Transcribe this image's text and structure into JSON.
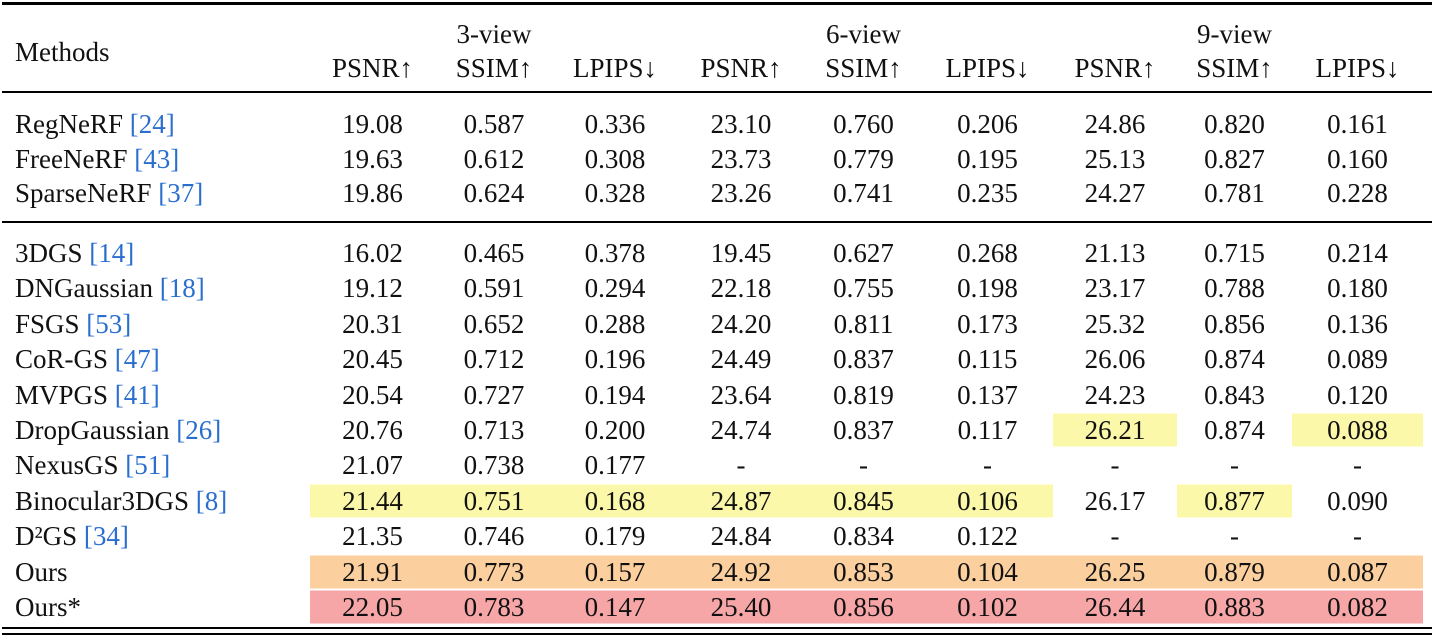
{
  "table": {
    "header": {
      "method": "Methods",
      "groups": [
        "3-view",
        "6-view",
        "9-view"
      ],
      "metrics": [
        "PSNR↑",
        "SSIM↑",
        "LPIPS↓",
        "PSNR↑",
        "SSIM↑",
        "LPIPS↓",
        "PSNR↑",
        "SSIM↑",
        "LPIPS↓"
      ]
    },
    "highlight_colors": {
      "yellow": "#fbf8a9",
      "orange": "#fbcf9e",
      "red": "#f7a6a8"
    },
    "sections": [
      {
        "rows": [
          {
            "method": "RegNeRF",
            "cite": "[24]",
            "cells": [
              "19.08",
              "0.587",
              "0.336",
              "23.10",
              "0.760",
              "0.206",
              "24.86",
              "0.820",
              "0.161"
            ]
          },
          {
            "method": "FreeNeRF",
            "cite": "[43]",
            "cells": [
              "19.63",
              "0.612",
              "0.308",
              "23.73",
              "0.779",
              "0.195",
              "25.13",
              "0.827",
              "0.160"
            ]
          },
          {
            "method": "SparseNeRF",
            "cite": "[37]",
            "cells": [
              "19.86",
              "0.624",
              "0.328",
              "23.26",
              "0.741",
              "0.235",
              "24.27",
              "0.781",
              "0.228"
            ]
          }
        ]
      },
      {
        "rows": [
          {
            "method": "3DGS",
            "cite": "[14]",
            "cells": [
              "16.02",
              "0.465",
              "0.378",
              "19.45",
              "0.627",
              "0.268",
              "21.13",
              "0.715",
              "0.214"
            ]
          },
          {
            "method": "DNGaussian",
            "cite": "[18]",
            "cells": [
              "19.12",
              "0.591",
              "0.294",
              "22.18",
              "0.755",
              "0.198",
              "23.17",
              "0.788",
              "0.180"
            ]
          },
          {
            "method": "FSGS",
            "cite": "[53]",
            "cells": [
              "20.31",
              "0.652",
              "0.288",
              "24.20",
              "0.811",
              "0.173",
              "25.32",
              "0.856",
              "0.136"
            ]
          },
          {
            "method": "CoR-GS",
            "cite": "[47]",
            "cells": [
              "20.45",
              "0.712",
              "0.196",
              "24.49",
              "0.837",
              "0.115",
              "26.06",
              "0.874",
              "0.089"
            ]
          },
          {
            "method": "MVPGS",
            "cite": "[41]",
            "cells": [
              "20.54",
              "0.727",
              "0.194",
              "23.64",
              "0.819",
              "0.137",
              "24.23",
              "0.843",
              "0.120"
            ]
          },
          {
            "method": "DropGaussian",
            "cite": "[26]",
            "cells": [
              "20.76",
              "0.713",
              "0.200",
              "24.74",
              "0.837",
              "0.117",
              "26.21",
              "0.874",
              "0.088"
            ],
            "highlight": [
              {
                "color": "yellow",
                "cells": [
                  6,
                  8
                ]
              }
            ]
          },
          {
            "method": "NexusGS",
            "cite": "[51]",
            "cells": [
              "21.07",
              "0.738",
              "0.177",
              "-",
              "-",
              "-",
              "-",
              "-",
              "-"
            ]
          },
          {
            "method": "Binocular3DGS",
            "cite": "[8]",
            "cells": [
              "21.44",
              "0.751",
              "0.168",
              "24.87",
              "0.845",
              "0.106",
              "26.17",
              "0.877",
              "0.090"
            ],
            "highlight": [
              {
                "color": "yellow",
                "cells": [
                  0,
                  1,
                  2,
                  3,
                  4,
                  5,
                  7
                ]
              }
            ]
          },
          {
            "method": "D²GS",
            "cite": "[34]",
            "cells": [
              "21.35",
              "0.746",
              "0.179",
              "24.84",
              "0.834",
              "0.122",
              "-",
              "-",
              "-"
            ]
          },
          {
            "method": "Ours",
            "cells": [
              "21.91",
              "0.773",
              "0.157",
              "24.92",
              "0.853",
              "0.104",
              "26.25",
              "0.879",
              "0.087"
            ],
            "highlight": [
              {
                "color": "orange",
                "cells": [
                  0,
                  1,
                  2,
                  3,
                  4,
                  5,
                  6,
                  7,
                  8
                ]
              }
            ]
          },
          {
            "method": "Ours*",
            "cells": [
              "22.05",
              "0.783",
              "0.147",
              "25.40",
              "0.856",
              "0.102",
              "26.44",
              "0.883",
              "0.082"
            ],
            "highlight": [
              {
                "color": "red",
                "cells": [
                  0,
                  1,
                  2,
                  3,
                  4,
                  5,
                  6,
                  7,
                  8
                ]
              }
            ]
          }
        ]
      }
    ]
  }
}
